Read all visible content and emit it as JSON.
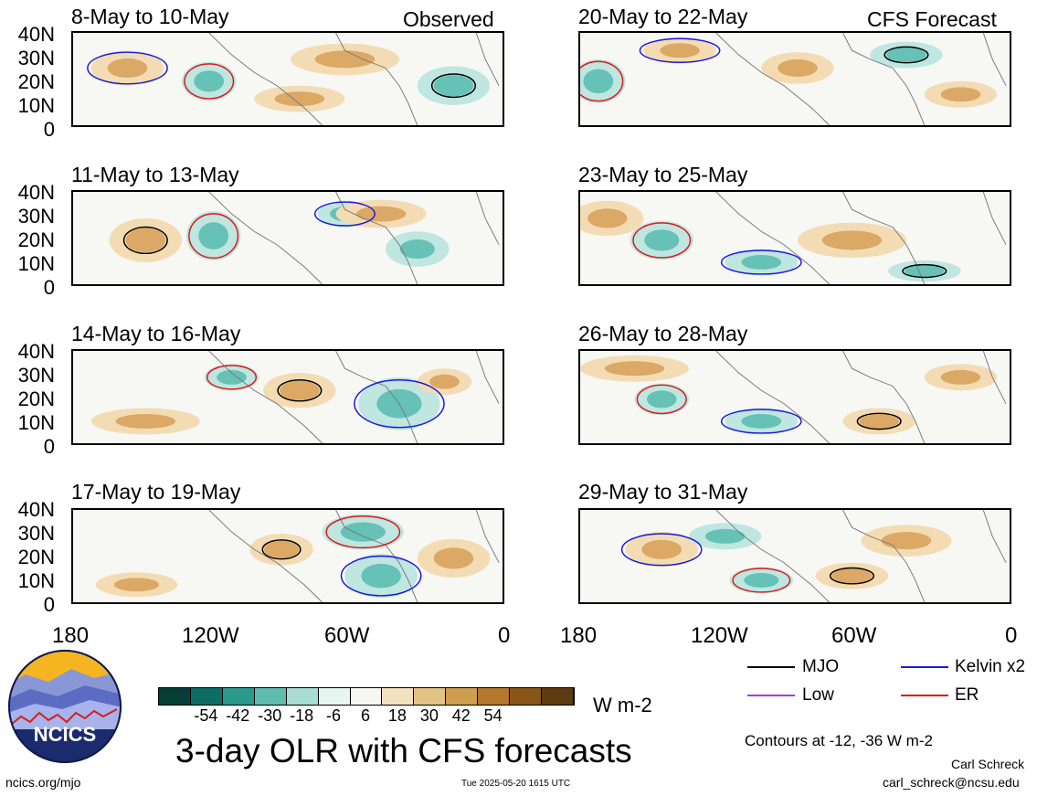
{
  "colors": {
    "mjo": "#000000",
    "kelvin": "#1a1adc",
    "low": "#a040d8",
    "er": "#e01818",
    "neg_light": "#bfe6e0",
    "neg_mid": "#66c1b6",
    "neg_dark": "#0d7a6e",
    "pos_light": "#f3dcb4",
    "pos_mid": "#dba865",
    "pos_dark": "#b97a2a"
  },
  "panels": [
    {
      "id": "obs1",
      "title": "8-May to 10-May",
      "tag": "Observed"
    },
    {
      "id": "obs2",
      "title": "11-May to 13-May",
      "tag": ""
    },
    {
      "id": "obs3",
      "title": "14-May to 16-May",
      "tag": ""
    },
    {
      "id": "obs4",
      "title": "17-May to 19-May",
      "tag": ""
    },
    {
      "id": "fc1",
      "title": "20-May to 22-May",
      "tag": "CFS Forecast"
    },
    {
      "id": "fc2",
      "title": "23-May to 25-May",
      "tag": ""
    },
    {
      "id": "fc3",
      "title": "26-May to 28-May",
      "tag": ""
    },
    {
      "id": "fc4",
      "title": "29-May to 31-May",
      "tag": ""
    }
  ],
  "y_ticks": [
    "40N",
    "30N",
    "20N",
    "10N",
    "0"
  ],
  "x_ticks": [
    "180",
    "120W",
    "60W",
    "0"
  ],
  "legend": {
    "mjo": "MJO",
    "kelvin": "Kelvin x2",
    "low": "Low",
    "er": "ER"
  },
  "colorbar": {
    "labels": [
      "-54",
      "-42",
      "-30",
      "-18",
      "-6",
      "6",
      "18",
      "30",
      "42",
      "54"
    ],
    "colors": [
      "#063f37",
      "#0d6f63",
      "#2a9a8c",
      "#5fbdaf",
      "#a7ddd3",
      "#e7f5f1",
      "#f6f6f3",
      "#f3e2bf",
      "#e2c383",
      "#cf9d4f",
      "#b5782c",
      "#8a5518",
      "#5e3a10"
    ],
    "units": "W m-2"
  },
  "main_title": "3-day OLR with CFS forecasts",
  "contours_note": "Contours at -12, -36 W m-2",
  "author_name": "Carl Schreck",
  "author_email": "carl_schreck@ncsu.edu",
  "url": "ncics.org/mjo",
  "timestamp": "Tue 2025-05-20 1615 UTC",
  "logo_text": "NCICS"
}
